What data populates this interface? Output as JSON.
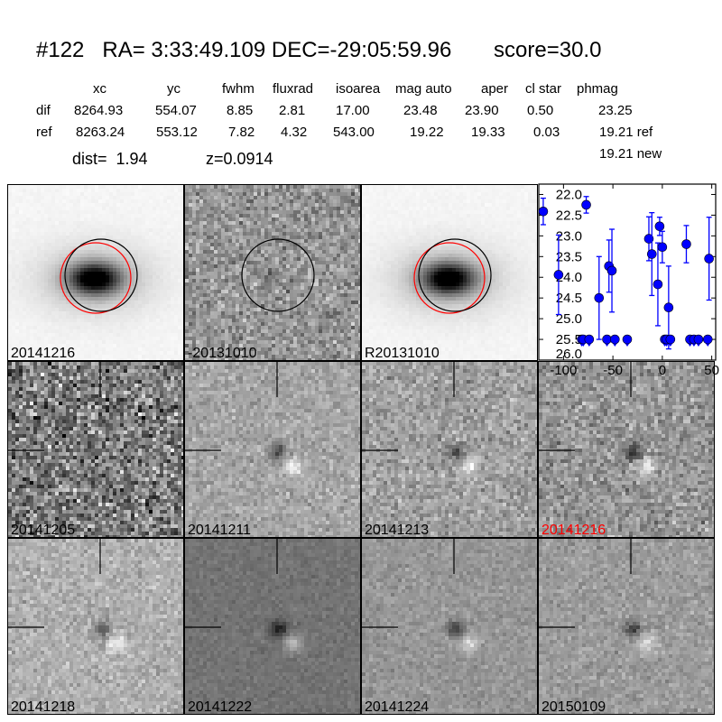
{
  "header": {
    "title": "#122   RA= 3:33:49.109 DEC=-29:05:59.96       score=30.0",
    "columns": [
      "xc",
      "yc",
      "fwhm",
      "fluxrad",
      "isoarea",
      "mag auto",
      "aper",
      "cl star",
      "phmag"
    ],
    "rows": [
      {
        "label": "dif",
        "values": [
          "8264.93",
          "554.07",
          "8.85",
          "2.81",
          "17.00",
          "23.48",
          "23.90",
          "0.50",
          "23.25"
        ]
      },
      {
        "label": "ref",
        "values": [
          "8263.24",
          "553.12",
          "7.82",
          "4.32",
          "543.00",
          "19.22",
          "19.33",
          "0.03",
          "19.21 ref"
        ]
      }
    ],
    "extra_phmag": "19.21 new",
    "dist": "dist=  1.94",
    "z": "z=0.0914"
  },
  "stamps": [
    {
      "label": "20141216",
      "color": "#000000"
    },
    {
      "label": "-20131010",
      "color": "#000000"
    },
    {
      "label": "R20131010",
      "color": "#000000"
    },
    {
      "label": "20141205",
      "color": "#000000"
    },
    {
      "label": "20141211",
      "color": "#000000"
    },
    {
      "label": "20141213",
      "color": "#000000"
    },
    {
      "label": "20141216",
      "color": "#ff0000"
    },
    {
      "label": "20141218",
      "color": "#000000"
    },
    {
      "label": "20141222",
      "color": "#000000"
    },
    {
      "label": "20141224",
      "color": "#000000"
    },
    {
      "label": "20150109",
      "color": "#000000"
    }
  ],
  "chart_data": {
    "type": "scatter",
    "xlim": [
      -125,
      54
    ],
    "ylim": [
      26.0,
      21.75
    ],
    "y_inverted": true,
    "xticks": [
      "-100",
      "-50",
      "0",
      "50"
    ],
    "xtick_values": [
      -100,
      -50,
      0,
      50
    ],
    "yticks": [
      "22.0",
      "22.5",
      "23.0",
      "23.5",
      "24.0",
      "24.5",
      "25.0",
      "25.5",
      "26.0"
    ],
    "ytick_values": [
      22.0,
      22.5,
      23.0,
      23.5,
      24.0,
      24.5,
      25.0,
      25.5,
      26.0
    ],
    "color": "#0000ff",
    "detections": [
      {
        "x": -120.5,
        "y": 22.41,
        "err": 0.32
      },
      {
        "x": -105,
        "y": 23.94,
        "err": 0.96
      },
      {
        "x": -77,
        "y": 22.25,
        "err": 0.2
      },
      {
        "x": -64,
        "y": 24.5,
        "err": 1.0
      },
      {
        "x": -54,
        "y": 23.73,
        "err": 0.63
      },
      {
        "x": -51,
        "y": 23.84,
        "err": 1.0
      },
      {
        "x": -13.6,
        "y": 23.07,
        "err": 0.53
      },
      {
        "x": -10.6,
        "y": 23.44,
        "err": 1.0
      },
      {
        "x": -4.5,
        "y": 24.17,
        "err": 1.0
      },
      {
        "x": -2.7,
        "y": 22.77,
        "err": 0.22
      },
      {
        "x": 0,
        "y": 23.27,
        "err": 0.38
      },
      {
        "x": 6.4,
        "y": 24.73,
        "err": 1.0
      },
      {
        "x": 24.3,
        "y": 23.2,
        "err": 0.45
      },
      {
        "x": 47.3,
        "y": 23.55,
        "err": 1.0
      }
    ],
    "upper_limits": {
      "y": 25.5,
      "x": [
        -81.5,
        -80,
        -74,
        -56,
        -48,
        -35.5,
        2.5,
        4.3,
        8.2,
        28,
        32,
        36.6,
        46
      ]
    }
  }
}
